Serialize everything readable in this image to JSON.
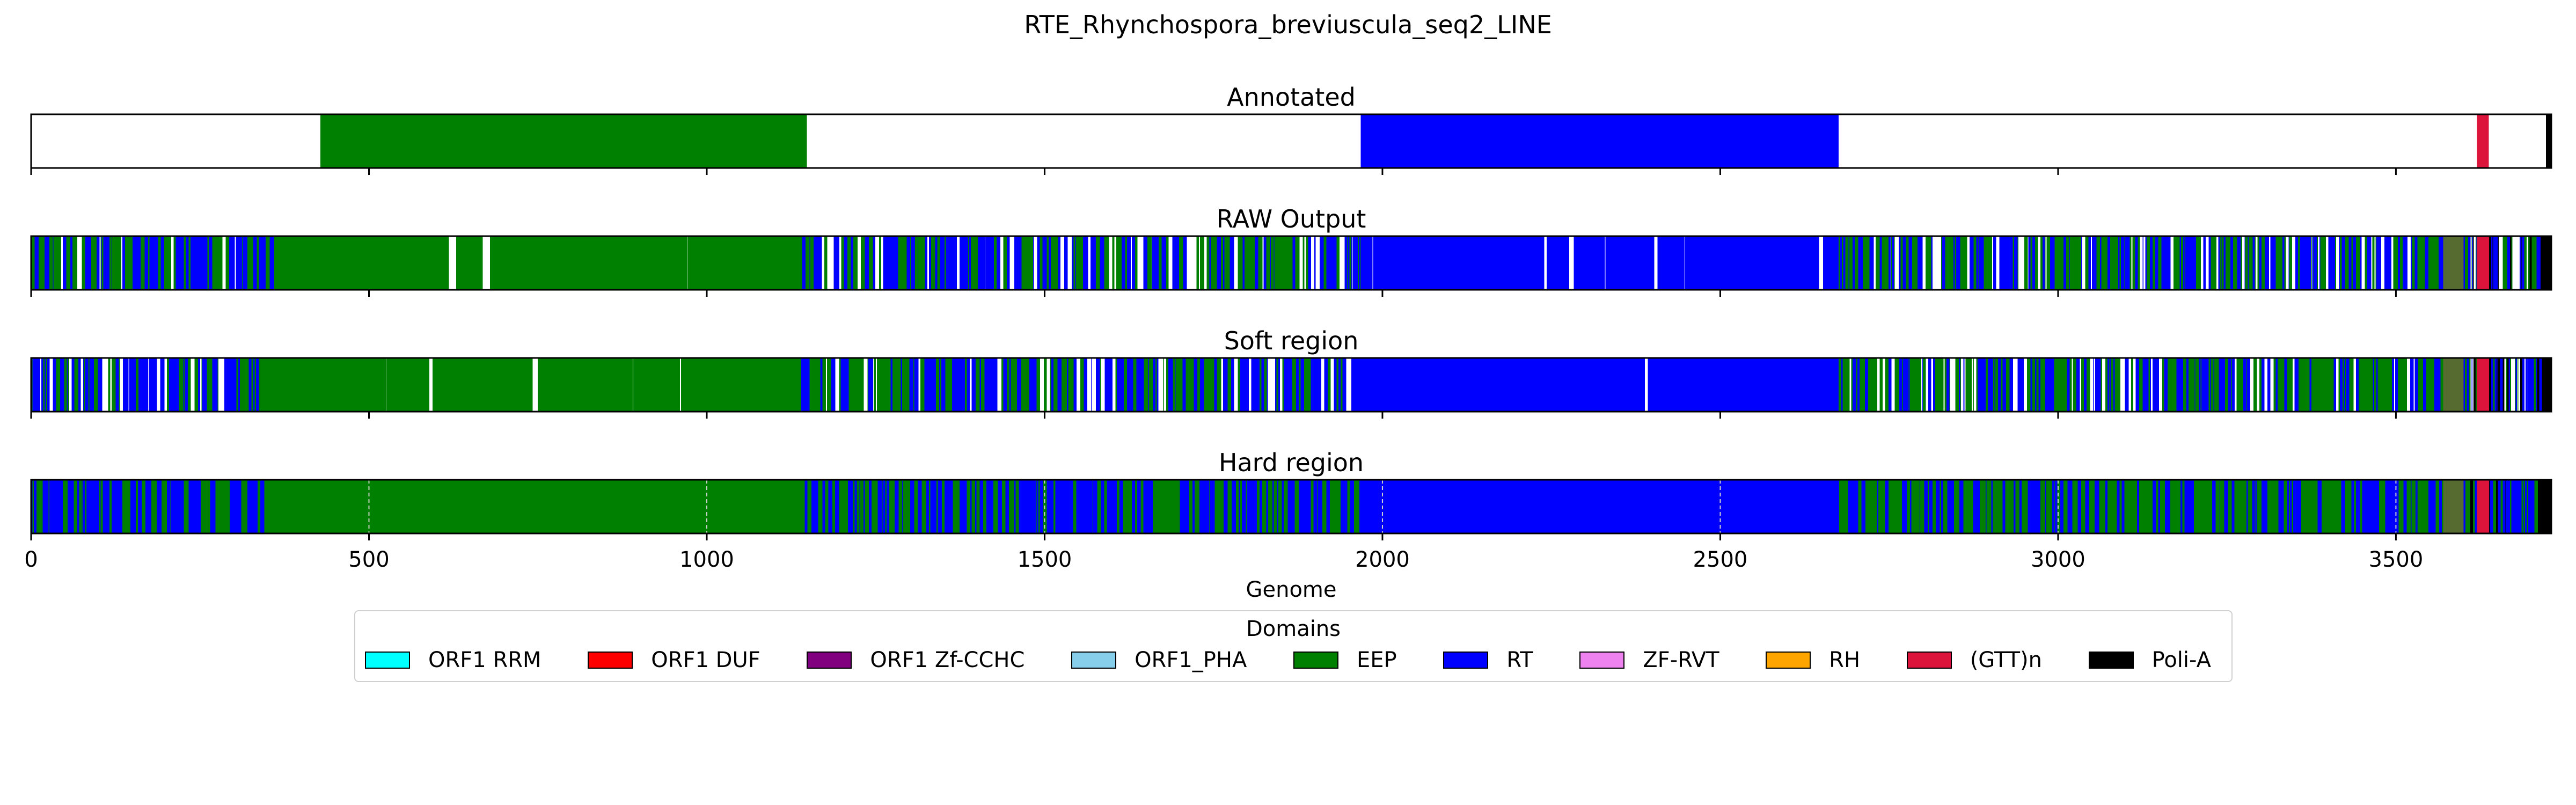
{
  "chart_data": {
    "type": "sequence-track",
    "title": "RTE_Rhynchospora_breviuscula_seq2_LINE",
    "xlabel": "Genome",
    "xlim": [
      0,
      3730
    ],
    "xticks": [
      0,
      500,
      1000,
      1500,
      2000,
      2500,
      3000,
      3500
    ],
    "grid_on_last_panel": true,
    "colors": {
      "ORF1 RRM": "#00ffff",
      "ORF1 DUF": "#ff0000",
      "ORF1 Zf-CCHC": "#800080",
      "ORF1_PHA": "#87ceeb",
      "EEP": "#008000",
      "RT": "#0000ff",
      "ZF-RVT": "#ee82ee",
      "RH": "#ffa500",
      "(GTT)n": "#dc143c",
      "Poli-A": "#000000",
      "none": "#ffffff",
      "mixed": "#556b2f"
    },
    "legend": {
      "title": "Domains",
      "placement": "lower center",
      "entries": [
        "ORF1 RRM",
        "ORF1 DUF",
        "ORF1 Zf-CCHC",
        "ORF1_PHA",
        "EEP",
        "RT",
        "ZF-RVT",
        "RH",
        "(GTT)n",
        "Poli-A"
      ]
    },
    "panels": [
      {
        "title": "Annotated",
        "segments": [
          [
            0,
            428,
            "none"
          ],
          [
            428,
            1148,
            "EEP"
          ],
          [
            1148,
            1968,
            "none"
          ],
          [
            1968,
            2675,
            "RT"
          ],
          [
            2675,
            3620,
            "none"
          ],
          [
            3620,
            3637,
            "(GTT)n"
          ],
          [
            3637,
            3722,
            "none"
          ],
          [
            3722,
            3730,
            "Poli-A"
          ]
        ]
      },
      {
        "title": "RAW Output",
        "regions": [
          [
            0,
            1968,
            [
              "EEP",
              "RT",
              "none"
            ],
            [
              0.4,
              0.45,
              0.15
            ],
            6
          ],
          [
            1968,
            2675,
            [
              "RT",
              "none"
            ],
            [
              0.97,
              0.03
            ],
            9
          ],
          [
            2675,
            3610,
            [
              "EEP",
              "RT",
              "none"
            ],
            [
              0.45,
              0.4,
              0.15
            ],
            5
          ],
          [
            3610,
            3730,
            [
              "RT",
              "EEP",
              "none",
              "Poli-A"
            ],
            [
              0.45,
              0.2,
              0.2,
              0.15
            ],
            3
          ]
        ],
        "overrides": [
          [
            360,
            1140,
            [
              "EEP",
              "none"
            ],
            [
              0.97,
              0.03
            ],
            14
          ],
          [
            3570,
            3600,
            [
              "mixed"
            ],
            [
              1
            ],
            10
          ],
          [
            3620,
            3638,
            [
              "(GTT)n"
            ],
            [
              1
            ],
            18
          ],
          [
            3714,
            3730,
            [
              "Poli-A"
            ],
            [
              1
            ],
            16
          ]
        ],
        "seed": 11
      },
      {
        "title": "Soft region",
        "regions": [
          [
            0,
            1968,
            [
              "EEP",
              "RT",
              "none"
            ],
            [
              0.4,
              0.45,
              0.15
            ],
            6
          ],
          [
            1968,
            2675,
            [
              "RT",
              "none"
            ],
            [
              0.98,
              0.02
            ],
            10
          ],
          [
            2675,
            3610,
            [
              "EEP",
              "RT",
              "none"
            ],
            [
              0.45,
              0.4,
              0.15
            ],
            5
          ],
          [
            3610,
            3730,
            [
              "RT",
              "EEP",
              "none",
              "Poli-A"
            ],
            [
              0.45,
              0.2,
              0.2,
              0.15
            ],
            3
          ]
        ],
        "overrides": [
          [
            350,
            1140,
            [
              "EEP",
              "none"
            ],
            [
              0.97,
              0.03
            ],
            14
          ],
          [
            3570,
            3600,
            [
              "mixed"
            ],
            [
              1
            ],
            10
          ],
          [
            3620,
            3638,
            [
              "(GTT)n"
            ],
            [
              1
            ],
            18
          ],
          [
            3716,
            3730,
            [
              "Poli-A"
            ],
            [
              1
            ],
            14
          ]
        ],
        "seed": 23
      },
      {
        "title": "Hard region",
        "regions": [
          [
            0,
            1968,
            [
              "EEP",
              "RT"
            ],
            [
              0.45,
              0.55
            ],
            6
          ],
          [
            1968,
            2675,
            [
              "RT"
            ],
            [
              1
            ],
            700
          ],
          [
            2675,
            3610,
            [
              "EEP",
              "RT"
            ],
            [
              0.5,
              0.5
            ],
            6
          ],
          [
            3610,
            3730,
            [
              "RT",
              "EEP",
              "Poli-A"
            ],
            [
              0.55,
              0.3,
              0.15
            ],
            4
          ]
        ],
        "overrides": [
          [
            345,
            1140,
            [
              "EEP"
            ],
            [
              1
            ],
            800
          ],
          [
            1660,
            1700,
            [
              "EEP"
            ],
            [
              1
            ],
            40
          ],
          [
            3570,
            3600,
            [
              "mixed"
            ],
            [
              1
            ],
            10
          ],
          [
            3620,
            3638,
            [
              "(GTT)n"
            ],
            [
              1
            ],
            18
          ],
          [
            3710,
            3730,
            [
              "Poli-A"
            ],
            [
              1
            ],
            20
          ]
        ],
        "seed": 37
      }
    ]
  }
}
